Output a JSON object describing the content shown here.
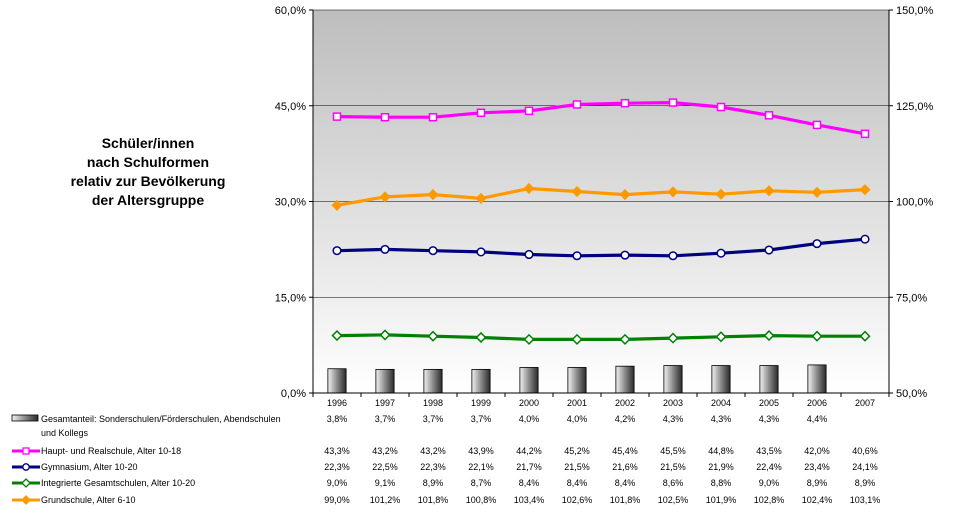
{
  "title_lines": [
    "Schüler/innen",
    "nach Schulformen",
    "relativ zur Bevölkerung",
    "der Altersgruppe"
  ],
  "chart_data": {
    "type": "line",
    "x": [
      "1996",
      "1997",
      "1998",
      "1999",
      "2000",
      "2001",
      "2002",
      "2003",
      "2004",
      "2005",
      "2006",
      "2007"
    ],
    "left_axis": {
      "ylim": [
        0,
        60
      ],
      "ticks": [
        "0,0%",
        "15,0%",
        "30,0%",
        "45,0%",
        "60,0%"
      ]
    },
    "right_axis": {
      "ylim": [
        50,
        150
      ],
      "ticks": [
        "50,0%",
        "75,0%",
        "100,0%",
        "125,0%",
        "150,0%"
      ]
    },
    "grid": true,
    "legend": "table-below",
    "series": [
      {
        "name": "Gesamtanteil: Sonderschulen/Förderschulen, Abendschulen und Kollegs",
        "type": "bar",
        "axis": "left",
        "color": "#444444",
        "values": [
          3.8,
          3.7,
          3.7,
          3.7,
          4.0,
          4.0,
          4.2,
          4.3,
          4.3,
          4.3,
          4.4,
          null
        ],
        "labels": [
          "3,8%",
          "3,7%",
          "3,7%",
          "3,7%",
          "4,0%",
          "4,0%",
          "4,2%",
          "4,3%",
          "4,3%",
          "4,3%",
          "4,4%",
          ""
        ]
      },
      {
        "name": "Haupt- und Realschule, Alter 10-18",
        "type": "line",
        "axis": "left",
        "color": "#ff00ff",
        "marker": "square",
        "values": [
          43.3,
          43.2,
          43.2,
          43.9,
          44.2,
          45.2,
          45.4,
          45.5,
          44.8,
          43.5,
          42.0,
          40.6
        ],
        "labels": [
          "43,3%",
          "43,2%",
          "43,2%",
          "43,9%",
          "44,2%",
          "45,2%",
          "45,4%",
          "45,5%",
          "44,8%",
          "43,5%",
          "42,0%",
          "40,6%"
        ]
      },
      {
        "name": "Gymnasium, Alter 10-20",
        "type": "line",
        "axis": "left",
        "color": "#000080",
        "marker": "circle",
        "values": [
          22.3,
          22.5,
          22.3,
          22.1,
          21.7,
          21.5,
          21.6,
          21.5,
          21.9,
          22.4,
          23.4,
          24.1
        ],
        "labels": [
          "22,3%",
          "22,5%",
          "22,3%",
          "22,1%",
          "21,7%",
          "21,5%",
          "21,6%",
          "21,5%",
          "21,9%",
          "22,4%",
          "23,4%",
          "24,1%"
        ]
      },
      {
        "name": "Integrierte Gesamtschulen, Alter 10-20",
        "type": "line",
        "axis": "left",
        "color": "#008000",
        "marker": "diamond",
        "values": [
          9.0,
          9.1,
          8.9,
          8.7,
          8.4,
          8.4,
          8.4,
          8.6,
          8.8,
          9.0,
          8.9,
          8.9
        ],
        "labels": [
          "9,0%",
          "9,1%",
          "8,9%",
          "8,7%",
          "8,4%",
          "8,4%",
          "8,4%",
          "8,6%",
          "8,8%",
          "9,0%",
          "8,9%",
          "8,9%"
        ]
      },
      {
        "name": "Grundschule, Alter 6-10",
        "type": "line",
        "axis": "right",
        "color": "#ff9900",
        "marker": "diamond",
        "values": [
          99.0,
          101.2,
          101.8,
          100.8,
          103.4,
          102.6,
          101.8,
          102.5,
          101.9,
          102.8,
          102.4,
          103.1
        ],
        "labels": [
          "99,0%",
          "101,2%",
          "101,8%",
          "100,8%",
          "103,4%",
          "102,6%",
          "101,8%",
          "102,5%",
          "101,9%",
          "102,8%",
          "102,4%",
          "103,1%"
        ]
      }
    ]
  }
}
